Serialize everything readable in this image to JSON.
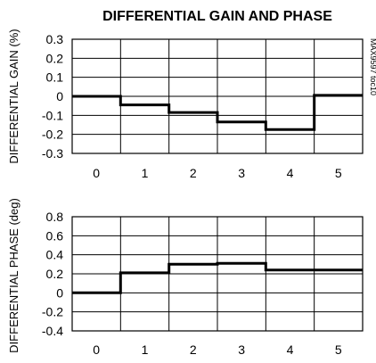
{
  "figure": {
    "title": "DIFFERENTIAL GAIN AND PHASE",
    "side_label": "MAX9597 toc10"
  },
  "chart_data": [
    {
      "type": "line",
      "step": true,
      "ylabel": "DIFFERENTIAL GAIN (%)",
      "xlabel": "",
      "x_ticks": [
        "0",
        "1",
        "2",
        "3",
        "4",
        "5"
      ],
      "y_ticks": [
        "0.3",
        "0.2",
        "0.1",
        "0",
        "-0.1",
        "-0.2",
        "-0.3"
      ],
      "ylim": [
        -0.3,
        0.3
      ],
      "grid": true,
      "series": [
        {
          "values": [
            0.0,
            -0.045,
            -0.085,
            -0.135,
            -0.175,
            0.005
          ]
        }
      ]
    },
    {
      "type": "line",
      "step": true,
      "ylabel": "DIFFERENTIAL PHASE (deg)",
      "xlabel": "",
      "x_ticks": [
        "0",
        "1",
        "2",
        "3",
        "4",
        "5"
      ],
      "y_ticks": [
        "0.8",
        "0.6",
        "0.4",
        "0.2",
        "0",
        "-0.2",
        "-0.4"
      ],
      "ylim": [
        -0.4,
        0.8
      ],
      "grid": true,
      "series": [
        {
          "values": [
            0.0,
            0.21,
            0.3,
            0.31,
            0.24,
            0.24
          ]
        }
      ]
    }
  ]
}
